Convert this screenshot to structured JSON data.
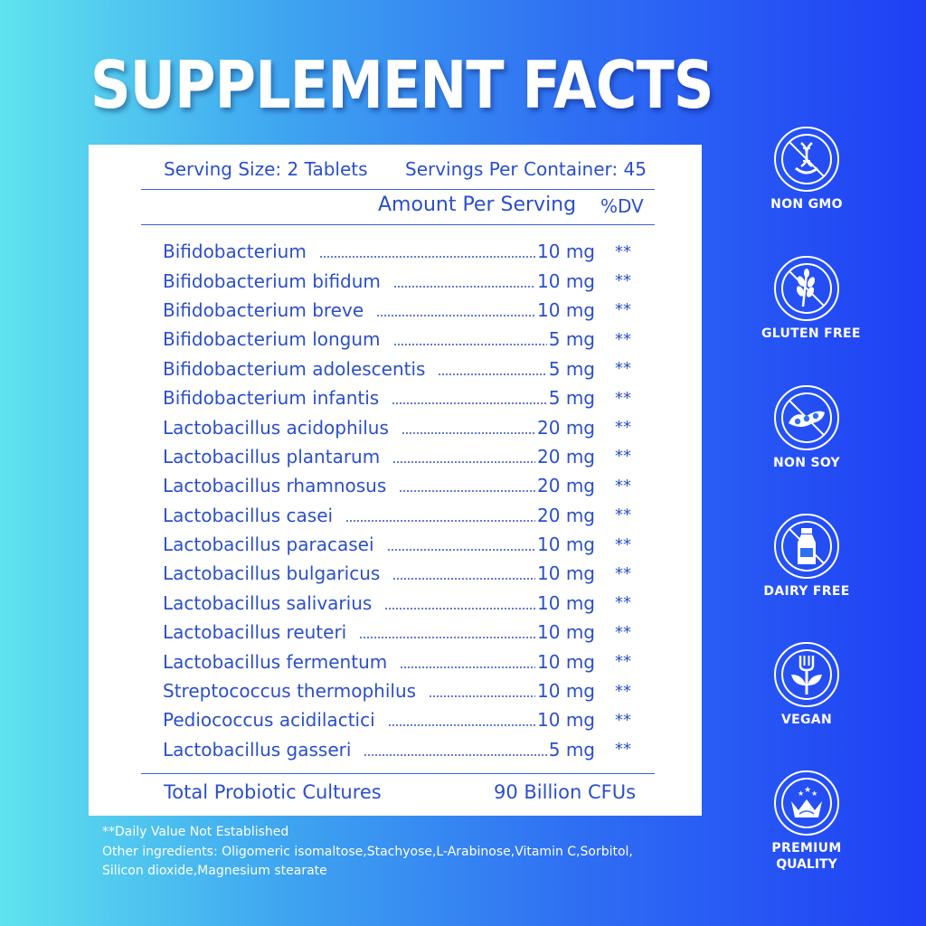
{
  "title": "SUPPLEMENT FACTS",
  "panel": {
    "serving_size": "Serving Size: 2 Tablets",
    "servings_per_container": "Servings Per Container: 45",
    "amount_header": "Amount Per Serving",
    "dv_header": "%DV",
    "ingredients": [
      {
        "name": "Bifidobacterium",
        "amount": "10 mg",
        "dv": "**"
      },
      {
        "name": "Bifidobacterium bifidum",
        "amount": "10 mg",
        "dv": "**"
      },
      {
        "name": "Bifidobacterium breve",
        "amount": "10 mg",
        "dv": "**"
      },
      {
        "name": "Bifidobacterium longum",
        "amount": "5 mg",
        "dv": "**"
      },
      {
        "name": "Bifidobacterium adolescentis",
        "amount": "5 mg",
        "dv": "**"
      },
      {
        "name": "Bifidobacterium infantis",
        "amount": "5 mg",
        "dv": "**"
      },
      {
        "name": "Lactobacillus acidophilus",
        "amount": "20 mg",
        "dv": "**"
      },
      {
        "name": "Lactobacillus plantarum",
        "amount": "20 mg",
        "dv": "**"
      },
      {
        "name": "Lactobacillus rhamnosus",
        "amount": "20 mg",
        "dv": "**"
      },
      {
        "name": "Lactobacillus casei",
        "amount": "20 mg",
        "dv": "**"
      },
      {
        "name": "Lactobacillus paracasei",
        "amount": "10 mg",
        "dv": "**"
      },
      {
        "name": "Lactobacillus bulgaricus",
        "amount": "10 mg",
        "dv": "**"
      },
      {
        "name": "Lactobacillus salivarius",
        "amount": "10 mg",
        "dv": "**"
      },
      {
        "name": "Lactobacillus reuteri",
        "amount": "10 mg",
        "dv": "**"
      },
      {
        "name": "Lactobacillus fermentum",
        "amount": "10 mg",
        "dv": "**"
      },
      {
        "name": "Streptococcus thermophilus",
        "amount": "10 mg",
        "dv": "**"
      },
      {
        "name": "Pediococcus acidilactici",
        "amount": "10 mg",
        "dv": "**"
      },
      {
        "name": "Lactobacillus gasseri",
        "amount": "5 mg",
        "dv": "**"
      }
    ],
    "total_label": "Total Probiotic Cultures",
    "total_value": "90 Billion CFUs"
  },
  "footnotes": {
    "dv_note": "**Daily Value Not Established",
    "other_line1": "Other ingredients: Oligomeric isomaltose,Stachyose,L-Arabinose,Vitamin C,Sorbitol,",
    "other_line2": "Silicon dioxide,Magnesium stearate"
  },
  "badges": [
    {
      "icon": "dna-icon",
      "label": "NON GMO"
    },
    {
      "icon": "wheat-icon",
      "label": "GLUTEN FREE"
    },
    {
      "icon": "soybean-icon",
      "label": "NON SOY"
    },
    {
      "icon": "milk-bottle-icon",
      "label": "DAIRY FREE"
    },
    {
      "icon": "fork-leaf-icon",
      "label": "VEGAN"
    },
    {
      "icon": "crown-icon",
      "label": "PREMIUM",
      "label2": "QUALITY"
    }
  ],
  "colors": {
    "text_blue": "#2b4fc9",
    "gradient_left": "#5fe3ee",
    "gradient_right": "#1f3ff5"
  }
}
